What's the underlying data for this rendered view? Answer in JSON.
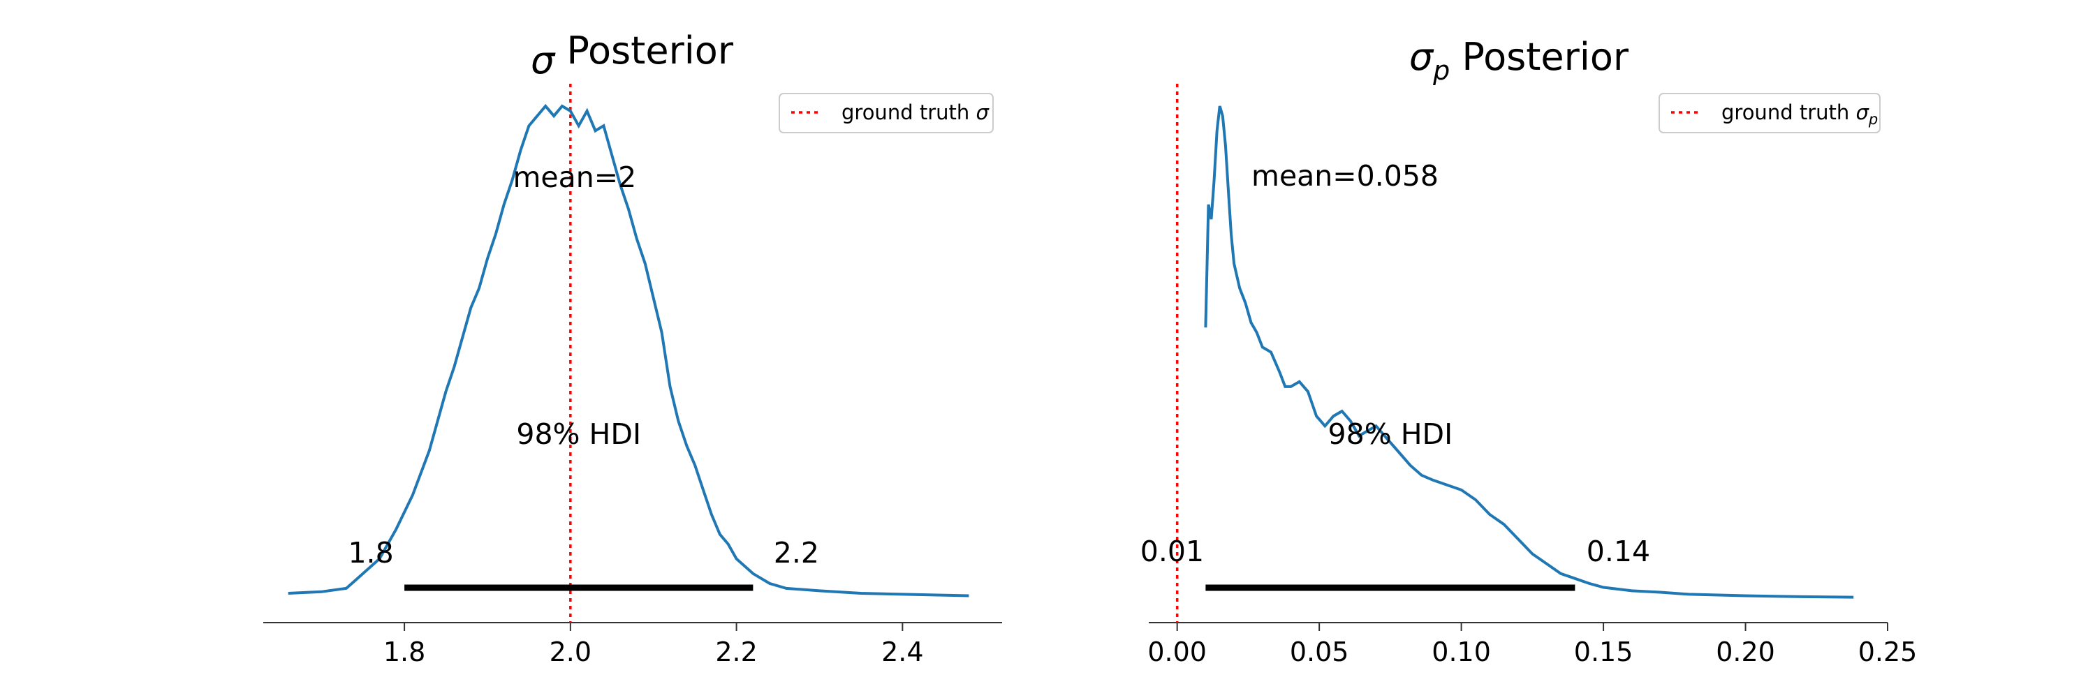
{
  "chart_data": [
    {
      "type": "line",
      "title_symbol": "σ",
      "title_subscript": "",
      "title_suffix": " Posterior",
      "xlim": [
        1.63,
        2.52
      ],
      "x_ticks": [
        "1.8",
        "2.0",
        "2.2",
        "2.4"
      ],
      "x_tick_values": [
        1.8,
        2.0,
        2.2,
        2.4
      ],
      "mean_label": "mean=2",
      "mean_value": 2.0,
      "hdi_label": "98% HDI",
      "hdi": [
        1.8,
        2.22
      ],
      "hdi_low_label": "1.8",
      "hdi_high_label": "2.2",
      "ground_truth": 2.0,
      "legend_text": "ground truth ",
      "legend_symbol": "σ",
      "legend_subscript": "",
      "legend_position": "top-right",
      "density_color": "#1f77b4",
      "ground_truth_color": "#ff0000",
      "series": [
        {
          "x": [
            1.66,
            1.7,
            1.73,
            1.75,
            1.77,
            1.79,
            1.81,
            1.83,
            1.85,
            1.86,
            1.87,
            1.88,
            1.89,
            1.9,
            1.91,
            1.92,
            1.93,
            1.94,
            1.95,
            1.96,
            1.97,
            1.98,
            1.99,
            2.0,
            2.01,
            2.02,
            2.03,
            2.04,
            2.05,
            2.06,
            2.07,
            2.08,
            2.09,
            2.1,
            2.11,
            2.12,
            2.13,
            2.14,
            2.15,
            2.16,
            2.17,
            2.18,
            2.19,
            2.2,
            2.22,
            2.24,
            2.26,
            2.3,
            2.35,
            2.4,
            2.48
          ],
          "y": [
            0.01,
            0.013,
            0.02,
            0.05,
            0.08,
            0.14,
            0.21,
            0.3,
            0.42,
            0.47,
            0.53,
            0.59,
            0.63,
            0.69,
            0.74,
            0.8,
            0.85,
            0.91,
            0.96,
            0.98,
            1.0,
            0.98,
            1.0,
            0.99,
            0.96,
            0.99,
            0.95,
            0.96,
            0.9,
            0.84,
            0.79,
            0.73,
            0.68,
            0.61,
            0.54,
            0.43,
            0.36,
            0.31,
            0.27,
            0.22,
            0.17,
            0.13,
            0.11,
            0.08,
            0.05,
            0.03,
            0.02,
            0.015,
            0.01,
            0.008,
            0.005
          ]
        }
      ]
    },
    {
      "type": "line",
      "title_symbol": "σ",
      "title_subscript": "p",
      "title_suffix": " Posterior",
      "xlim": [
        -0.01,
        0.25
      ],
      "x_ticks": [
        "0.00",
        "0.05",
        "0.10",
        "0.15",
        "0.20",
        "0.25"
      ],
      "x_tick_values": [
        0.0,
        0.05,
        0.1,
        0.15,
        0.2,
        0.25
      ],
      "mean_label": "mean=0.058",
      "mean_value": 0.058,
      "hdi_label": "98% HDI",
      "hdi": [
        0.01,
        0.14
      ],
      "hdi_low_label": "0.01",
      "hdi_high_label": "0.14",
      "ground_truth": 0.0,
      "legend_text": "ground truth ",
      "legend_symbol": "σ",
      "legend_subscript": "p",
      "legend_position": "top-right",
      "density_color": "#1f77b4",
      "ground_truth_color": "#ff0000",
      "series": [
        {
          "x": [
            0.01,
            0.011,
            0.012,
            0.013,
            0.014,
            0.015,
            0.016,
            0.017,
            0.018,
            0.019,
            0.02,
            0.022,
            0.024,
            0.026,
            0.028,
            0.03,
            0.033,
            0.036,
            0.038,
            0.04,
            0.043,
            0.046,
            0.049,
            0.052,
            0.055,
            0.058,
            0.061,
            0.064,
            0.067,
            0.07,
            0.073,
            0.076,
            0.079,
            0.082,
            0.086,
            0.09,
            0.095,
            0.1,
            0.105,
            0.11,
            0.115,
            0.12,
            0.125,
            0.13,
            0.135,
            0.14,
            0.145,
            0.15,
            0.16,
            0.17,
            0.18,
            0.2,
            0.22,
            0.238
          ],
          "y": [
            0.55,
            0.8,
            0.77,
            0.85,
            0.95,
            1.0,
            0.98,
            0.92,
            0.83,
            0.74,
            0.68,
            0.63,
            0.6,
            0.56,
            0.54,
            0.51,
            0.5,
            0.46,
            0.43,
            0.43,
            0.44,
            0.42,
            0.37,
            0.35,
            0.37,
            0.38,
            0.36,
            0.33,
            0.34,
            0.35,
            0.33,
            0.31,
            0.29,
            0.27,
            0.25,
            0.24,
            0.23,
            0.22,
            0.2,
            0.17,
            0.15,
            0.12,
            0.09,
            0.07,
            0.05,
            0.04,
            0.03,
            0.022,
            0.015,
            0.012,
            0.008,
            0.005,
            0.003,
            0.002
          ]
        }
      ]
    }
  ]
}
